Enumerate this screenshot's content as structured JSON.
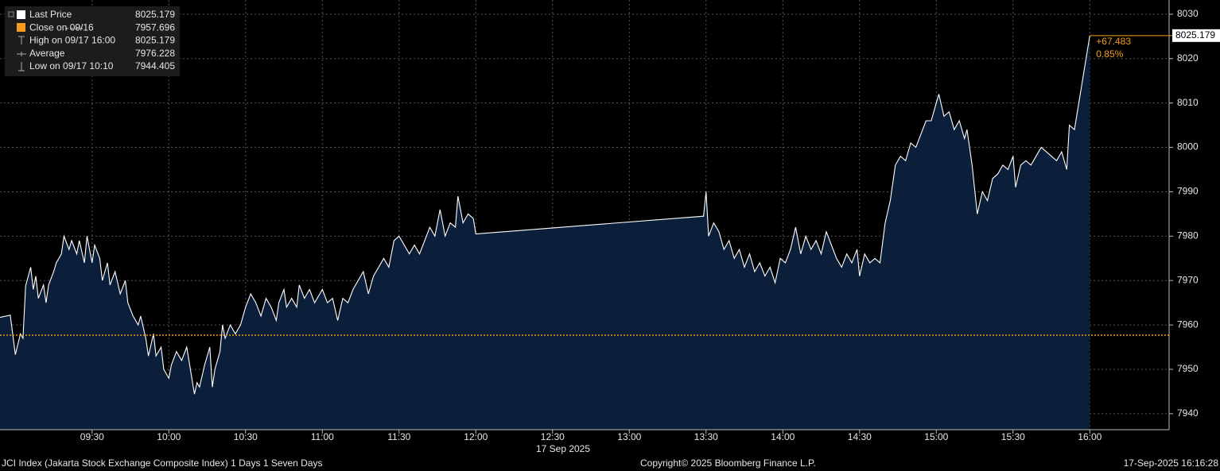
{
  "chart_data": {
    "type": "line",
    "xlabel": "17 Sep 2025",
    "xlim": [
      "08:54",
      "16:31"
    ],
    "xticks": [
      "09:30",
      "10:00",
      "10:30",
      "11:00",
      "11:30",
      "12:00",
      "12:30",
      "13:00",
      "13:30",
      "14:00",
      "14:30",
      "15:00",
      "15:30",
      "16:00"
    ],
    "ylim": [
      7936.4,
      8033.2
    ],
    "yticks": [
      7940,
      7950,
      7960,
      7970,
      7980,
      7990,
      8000,
      8010,
      8020,
      8030
    ],
    "grid": true,
    "x": [
      "08:54",
      "08:58",
      "09:00",
      "09:02",
      "09:03",
      "09:04",
      "09:06",
      "09:07",
      "09:08",
      "09:09",
      "09:11",
      "09:12",
      "09:13",
      "09:15",
      "09:16",
      "09:18",
      "09:19",
      "09:21",
      "09:22",
      "09:24",
      "09:25",
      "09:27",
      "09:28",
      "09:30",
      "09:31",
      "09:33",
      "09:34",
      "09:36",
      "09:37",
      "09:39",
      "09:41",
      "09:43",
      "09:44",
      "09:46",
      "09:48",
      "09:49",
      "09:51",
      "09:52",
      "09:54",
      "09:55",
      "09:57",
      "09:58",
      "10:00",
      "10:01",
      "10:03",
      "10:05",
      "10:07",
      "10:10",
      "10:11",
      "10:12",
      "10:14",
      "10:16",
      "10:17",
      "10:18",
      "10:20",
      "10:21",
      "10:22",
      "10:24",
      "10:26",
      "10:28",
      "10:30",
      "10:32",
      "10:34",
      "10:36",
      "10:38",
      "10:40",
      "10:42",
      "10:43",
      "10:45",
      "10:46",
      "10:48",
      "10:50",
      "10:51",
      "10:53",
      "10:55",
      "10:57",
      "10:59",
      "11:00",
      "11:02",
      "11:04",
      "11:06",
      "11:08",
      "11:10",
      "11:12",
      "11:14",
      "11:16",
      "11:18",
      "11:20",
      "11:22",
      "11:24",
      "11:26",
      "11:28",
      "11:30",
      "11:32",
      "11:34",
      "11:36",
      "11:38",
      "11:40",
      "11:42",
      "11:44",
      "11:46",
      "11:48",
      "11:50",
      "11:52",
      "11:53",
      "11:55",
      "11:57",
      "11:59",
      "12:00",
      "13:29",
      "13:30",
      "13:31",
      "13:33",
      "13:35",
      "13:37",
      "13:39",
      "13:41",
      "13:43",
      "13:45",
      "13:47",
      "13:49",
      "13:51",
      "13:53",
      "13:55",
      "13:57",
      "13:59",
      "14:01",
      "14:03",
      "14:05",
      "14:07",
      "14:09",
      "14:11",
      "14:13",
      "14:15",
      "14:17",
      "14:19",
      "14:21",
      "14:23",
      "14:25",
      "14:27",
      "14:29",
      "14:30",
      "14:32",
      "14:34",
      "14:36",
      "14:38",
      "14:40",
      "14:42",
      "14:44",
      "14:46",
      "14:48",
      "14:50",
      "14:52",
      "14:54",
      "14:56",
      "14:58",
      "15:00",
      "15:01",
      "15:03",
      "15:05",
      "15:07",
      "15:09",
      "15:11",
      "15:12",
      "15:14",
      "15:16",
      "15:18",
      "15:20",
      "15:22",
      "15:24",
      "15:26",
      "15:28",
      "15:30",
      "15:31",
      "15:33",
      "15:35",
      "15:37",
      "15:39",
      "15:41",
      "15:43",
      "15:45",
      "15:47",
      "15:49",
      "15:51",
      "15:52",
      "15:54",
      "16:00"
    ],
    "series": [
      {
        "name": "Last Price",
        "color": "#ffffff",
        "fill": "#0b1f3b",
        "values": [
          7961.7,
          7962.2,
          7953.3,
          7958,
          7957,
          7968.8,
          7973,
          7968,
          7971,
          7966,
          7969,
          7965,
          7969,
          7972,
          7974,
          7976,
          7980,
          7977,
          7979,
          7976,
          7979,
          7974,
          7980,
          7974,
          7978,
          7975,
          7970,
          7974,
          7969,
          7972,
          7967,
          7970,
          7965,
          7962,
          7960,
          7962,
          7957,
          7953,
          7958,
          7953,
          7955,
          7950,
          7948,
          7951,
          7954,
          7952,
          7955,
          7944.405,
          7947,
          7946,
          7951,
          7955,
          7946,
          7950,
          7954,
          7960,
          7957,
          7960,
          7958,
          7960,
          7964,
          7967,
          7965,
          7962,
          7966,
          7964,
          7961,
          7965,
          7968,
          7964,
          7966,
          7964,
          7969,
          7966,
          7968,
          7965,
          7967,
          7968,
          7965,
          7966,
          7961,
          7966,
          7965,
          7968,
          7970,
          7972,
          7967,
          7971,
          7973,
          7975,
          7973,
          7979,
          7980,
          7978,
          7976,
          7978,
          7976,
          7979,
          7982,
          7980,
          7986,
          7980,
          7983,
          7982,
          7989,
          7983,
          7985,
          7984,
          7980.5,
          7984.5,
          7990,
          7980,
          7983,
          7981,
          7977,
          7979,
          7975,
          7977,
          7973,
          7976,
          7972,
          7974,
          7971,
          7973,
          7969.5,
          7975,
          7974,
          7977,
          7982,
          7976,
          7980,
          7977,
          7979,
          7976,
          7981,
          7978,
          7975,
          7973,
          7976,
          7974,
          7977,
          7971,
          7976,
          7974,
          7975,
          7974,
          7983,
          7988,
          7996,
          7998,
          7997,
          8001,
          8000,
          8003,
          8006,
          8006,
          8010,
          8012,
          8007,
          8008,
          8004,
          8006,
          8002,
          8004,
          7996,
          7985,
          7990,
          7988,
          7993,
          7994,
          7996,
          7995,
          7998,
          7991,
          7996,
          7997,
          7996,
          7998,
          8000,
          7999,
          7998,
          7997,
          7999,
          7995,
          8005,
          8004,
          8025.179
        ]
      }
    ],
    "close_line": {
      "name": "Close on 09/16",
      "value": 7957.696,
      "color": "#f39c1d"
    },
    "legend": [
      {
        "label": "Last Price",
        "value": 8025.179
      },
      {
        "label": "Close on 09/16",
        "value": 7957.696
      },
      {
        "label": "High on 09/17 16:00",
        "value": 8025.179
      },
      {
        "label": "Average",
        "value": 7976.228
      },
      {
        "label": "Low on 09/17 10:10",
        "value": 7944.405
      }
    ],
    "change": {
      "value": 67.483,
      "label": "+67.483"
    },
    "change_pct": {
      "value": 0.85,
      "label": "0.85%"
    },
    "footer": {
      "left": "JCI Index (Jakarta Stock Exchange Composite Index) 1 Days 1 Seven Days",
      "center": "Copyright© 2025 Bloomberg Finance L.P.",
      "right": "17-Sep-2025 16:16:28"
    }
  }
}
